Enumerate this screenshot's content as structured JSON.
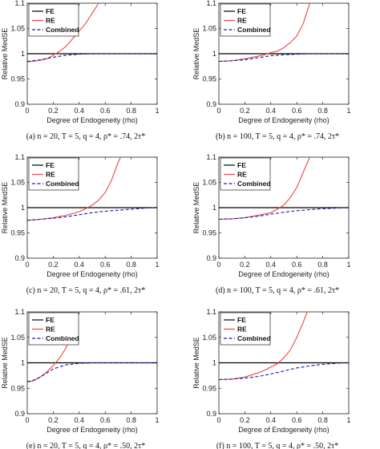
{
  "chart_data": [
    {
      "type": "line",
      "caption": "(a) n = 20, T = 5, q = 4, ρ* = .74, 2τ*",
      "xlabel": "Degree of Endogeneity (rho)",
      "ylabel": "Relative MedSE",
      "xlim": [
        0,
        1
      ],
      "ylim": [
        0.9,
        1.1
      ],
      "xticks": [
        "0",
        "0.2",
        "0.4",
        "0.6",
        "0.8",
        "1"
      ],
      "yticks": [
        "0.9",
        "0.95",
        "1",
        "1.05",
        "1.1"
      ],
      "legend_position": "top-left",
      "series": [
        {
          "name": "FE",
          "color": "#000000",
          "style": "solid",
          "points": [
            [
              0,
              1
            ],
            [
              1,
              1
            ]
          ]
        },
        {
          "name": "RE",
          "color": "#ee4444",
          "style": "solid",
          "points": [
            [
              0,
              0.984
            ],
            [
              0.05,
              0.985
            ],
            [
              0.1,
              0.987
            ],
            [
              0.15,
              0.99
            ],
            [
              0.2,
              0.997
            ],
            [
              0.25,
              1.005
            ],
            [
              0.3,
              1.015
            ],
            [
              0.35,
              1.03
            ],
            [
              0.4,
              1.045
            ],
            [
              0.45,
              1.06
            ],
            [
              0.5,
              1.08
            ],
            [
              0.55,
              1.1
            ]
          ]
        },
        {
          "name": "Combined",
          "color": "#1a1aa8",
          "style": "dashed",
          "points": [
            [
              0,
              0.985
            ],
            [
              0.1,
              0.988
            ],
            [
              0.2,
              0.993
            ],
            [
              0.3,
              0.997
            ],
            [
              0.4,
              0.999
            ],
            [
              0.5,
              1.0
            ],
            [
              0.7,
              1.0
            ],
            [
              0.97,
              1.0
            ]
          ]
        }
      ]
    },
    {
      "type": "line",
      "caption": "(b) n = 100, T = 5, q = 4, ρ* = .74, 2τ*",
      "xlabel": "Degree of Endogeneity (rho)",
      "ylabel": "Relative MedSE",
      "xlim": [
        0,
        1
      ],
      "ylim": [
        0.9,
        1.1
      ],
      "xticks": [
        "0",
        "0.2",
        "0.4",
        "0.6",
        "0.8",
        "1"
      ],
      "yticks": [
        "0.9",
        "0.95",
        "1",
        "1.05",
        "1.1"
      ],
      "legend_position": "top-left",
      "series": [
        {
          "name": "FE",
          "color": "#000000",
          "style": "solid",
          "points": [
            [
              0,
              1
            ],
            [
              1,
              1
            ]
          ]
        },
        {
          "name": "RE",
          "color": "#ee4444",
          "style": "solid",
          "points": [
            [
              0,
              0.985
            ],
            [
              0.1,
              0.986
            ],
            [
              0.2,
              0.99
            ],
            [
              0.3,
              0.995
            ],
            [
              0.35,
              0.998
            ],
            [
              0.4,
              1.002
            ],
            [
              0.45,
              1.005
            ],
            [
              0.5,
              1.012
            ],
            [
              0.55,
              1.022
            ],
            [
              0.6,
              1.035
            ],
            [
              0.65,
              1.06
            ],
            [
              0.7,
              1.1
            ]
          ]
        },
        {
          "name": "Combined",
          "color": "#1a1aa8",
          "style": "dashed",
          "points": [
            [
              0,
              0.985
            ],
            [
              0.1,
              0.986
            ],
            [
              0.2,
              0.988
            ],
            [
              0.3,
              0.992
            ],
            [
              0.4,
              0.996
            ],
            [
              0.5,
              0.998
            ],
            [
              0.6,
              0.999
            ],
            [
              0.7,
              1.0
            ],
            [
              0.97,
              1.0
            ]
          ]
        }
      ]
    },
    {
      "type": "line",
      "caption": "(c) n = 20, T = 5, q = 4, ρ* = .61, 2τ*",
      "xlabel": "Degree of Endogeneity (rho)",
      "ylabel": "Relative MedSE",
      "xlim": [
        0,
        1
      ],
      "ylim": [
        0.9,
        1.1
      ],
      "xticks": [
        "0",
        "0.2",
        "0.4",
        "0.6",
        "0.8",
        "1"
      ],
      "yticks": [
        "0.9",
        "0.95",
        "1",
        "1.05",
        "1.1"
      ],
      "legend_position": "top-left",
      "series": [
        {
          "name": "FE",
          "color": "#000000",
          "style": "solid",
          "points": [
            [
              0,
              1
            ],
            [
              1,
              1
            ]
          ]
        },
        {
          "name": "RE",
          "color": "#ee4444",
          "style": "solid",
          "points": [
            [
              0,
              0.975
            ],
            [
              0.1,
              0.977
            ],
            [
              0.2,
              0.98
            ],
            [
              0.3,
              0.985
            ],
            [
              0.4,
              0.992
            ],
            [
              0.45,
              0.998
            ],
            [
              0.5,
              1.005
            ],
            [
              0.55,
              1.015
            ],
            [
              0.6,
              1.03
            ],
            [
              0.65,
              1.055
            ],
            [
              0.7,
              1.09
            ],
            [
              0.72,
              1.1
            ]
          ]
        },
        {
          "name": "Combined",
          "color": "#1a1aa8",
          "style": "dashed",
          "points": [
            [
              0,
              0.975
            ],
            [
              0.1,
              0.977
            ],
            [
              0.2,
              0.979
            ],
            [
              0.3,
              0.982
            ],
            [
              0.4,
              0.986
            ],
            [
              0.5,
              0.99
            ],
            [
              0.6,
              0.993
            ],
            [
              0.7,
              0.995
            ],
            [
              0.8,
              0.997
            ],
            [
              0.9,
              0.999
            ],
            [
              0.97,
              1.0
            ]
          ]
        }
      ]
    },
    {
      "type": "line",
      "caption": "(d) n = 100, T = 5, q = 4, ρ* = .61, 2τ*",
      "xlabel": "Degree of Endogeneity (rho)",
      "ylabel": "Relative MedSE",
      "xlim": [
        0,
        1
      ],
      "ylim": [
        0.9,
        1.1
      ],
      "xticks": [
        "0",
        "0.2",
        "0.4",
        "0.6",
        "0.8",
        "1"
      ],
      "yticks": [
        "0.9",
        "0.95",
        "1",
        "1.05",
        "1.1"
      ],
      "legend_position": "top-left",
      "series": [
        {
          "name": "FE",
          "color": "#000000",
          "style": "solid",
          "points": [
            [
              0,
              1
            ],
            [
              1,
              1
            ]
          ]
        },
        {
          "name": "RE",
          "color": "#ee4444",
          "style": "solid",
          "points": [
            [
              0,
              0.977
            ],
            [
              0.1,
              0.978
            ],
            [
              0.2,
              0.98
            ],
            [
              0.3,
              0.985
            ],
            [
              0.4,
              0.99
            ],
            [
              0.45,
              0.997
            ],
            [
              0.5,
              1.005
            ],
            [
              0.55,
              1.02
            ],
            [
              0.6,
              1.04
            ],
            [
              0.65,
              1.07
            ],
            [
              0.7,
              1.1
            ]
          ]
        },
        {
          "name": "Combined",
          "color": "#1a1aa8",
          "style": "dashed",
          "points": [
            [
              0,
              0.977
            ],
            [
              0.1,
              0.978
            ],
            [
              0.2,
              0.98
            ],
            [
              0.3,
              0.983
            ],
            [
              0.4,
              0.987
            ],
            [
              0.5,
              0.991
            ],
            [
              0.6,
              0.994
            ],
            [
              0.7,
              0.996
            ],
            [
              0.8,
              0.998
            ],
            [
              0.9,
              0.999
            ],
            [
              0.97,
              1.0
            ]
          ]
        }
      ]
    },
    {
      "type": "line",
      "caption": "(e) n = 20, T = 5, q = 4, ρ* = .50, 2τ*",
      "xlabel": "Degree of Endogeneity (rho)",
      "ylabel": "Relative MedSE",
      "xlim": [
        0,
        1
      ],
      "ylim": [
        0.9,
        1.1
      ],
      "xticks": [
        "0",
        "0.2",
        "0.4",
        "0.6",
        "0.8",
        "1"
      ],
      "yticks": [
        "0.9",
        "0.95",
        "1",
        "1.05",
        "1.1"
      ],
      "legend_position": "top-left",
      "series": [
        {
          "name": "FE",
          "color": "#000000",
          "style": "solid",
          "points": [
            [
              0,
              1
            ],
            [
              1,
              1
            ]
          ]
        },
        {
          "name": "RE",
          "color": "#ee4444",
          "style": "solid",
          "points": [
            [
              0,
              0.962
            ],
            [
              0.05,
              0.965
            ],
            [
              0.1,
              0.972
            ],
            [
              0.15,
              0.982
            ],
            [
              0.2,
              0.995
            ],
            [
              0.25,
              1.01
            ],
            [
              0.3,
              1.03
            ],
            [
              0.35,
              1.06
            ],
            [
              0.4,
              1.1
            ]
          ]
        },
        {
          "name": "Combined",
          "color": "#1a1aa8",
          "style": "dashed",
          "points": [
            [
              0,
              0.963
            ],
            [
              0.05,
              0.966
            ],
            [
              0.1,
              0.972
            ],
            [
              0.15,
              0.98
            ],
            [
              0.2,
              0.988
            ],
            [
              0.3,
              0.996
            ],
            [
              0.4,
              0.999
            ],
            [
              0.5,
              1.0
            ],
            [
              0.7,
              1.0
            ],
            [
              0.97,
              1.0
            ]
          ]
        }
      ]
    },
    {
      "type": "line",
      "caption": "(f) n = 100, T = 5, q = 4, ρ* = .50, 2τ*",
      "xlabel": "Degree of Endogeneity (rho)",
      "ylabel": "Relative MedSE",
      "xlim": [
        0,
        1
      ],
      "ylim": [
        0.9,
        1.1
      ],
      "xticks": [
        "0",
        "0.2",
        "0.4",
        "0.6",
        "0.8",
        "1"
      ],
      "yticks": [
        "0.9",
        "0.95",
        "1",
        "1.05",
        "1.1"
      ],
      "legend_position": "top-left",
      "series": [
        {
          "name": "FE",
          "color": "#000000",
          "style": "solid",
          "points": [
            [
              0,
              1
            ],
            [
              1,
              1
            ]
          ]
        },
        {
          "name": "RE",
          "color": "#ee4444",
          "style": "solid",
          "points": [
            [
              0,
              0.967
            ],
            [
              0.1,
              0.968
            ],
            [
              0.2,
              0.972
            ],
            [
              0.3,
              0.98
            ],
            [
              0.35,
              0.985
            ],
            [
              0.4,
              0.992
            ],
            [
              0.45,
              0.998
            ],
            [
              0.5,
              1.01
            ],
            [
              0.55,
              1.025
            ],
            [
              0.6,
              1.05
            ],
            [
              0.65,
              1.08
            ],
            [
              0.68,
              1.1
            ]
          ]
        },
        {
          "name": "Combined",
          "color": "#1a1aa8",
          "style": "dashed",
          "points": [
            [
              0,
              0.967
            ],
            [
              0.1,
              0.968
            ],
            [
              0.2,
              0.97
            ],
            [
              0.3,
              0.973
            ],
            [
              0.4,
              0.978
            ],
            [
              0.5,
              0.984
            ],
            [
              0.6,
              0.99
            ],
            [
              0.7,
              0.994
            ],
            [
              0.8,
              0.997
            ],
            [
              0.9,
              0.999
            ],
            [
              0.97,
              1.0
            ]
          ]
        }
      ]
    }
  ]
}
